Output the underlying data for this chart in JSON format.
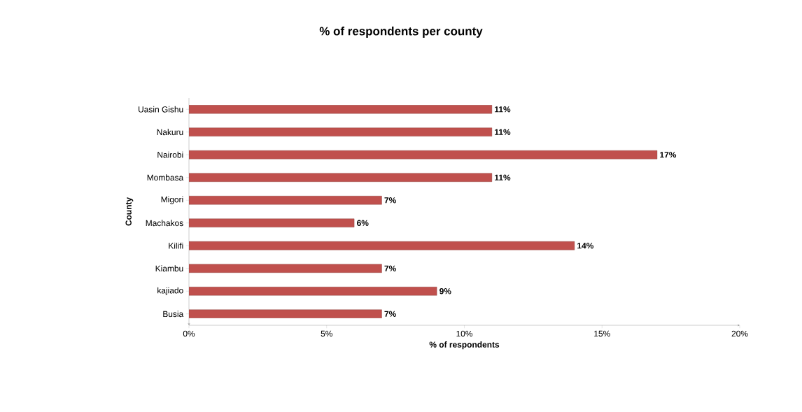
{
  "chart_data": {
    "type": "bar",
    "orientation": "horizontal",
    "title": "% of respondents per county",
    "xlabel": "% of respondents",
    "ylabel": "County",
    "categories": [
      "Uasin Gishu",
      "Nakuru",
      "Nairobi",
      "Mombasa",
      "Migori",
      "Machakos",
      "Kilifi",
      "Kiambu",
      "kajiado",
      "Busia"
    ],
    "values": [
      11,
      11,
      17,
      11,
      7,
      6,
      14,
      7,
      9,
      7
    ],
    "value_labels": [
      "11%",
      "11%",
      "17%",
      "11%",
      "7%",
      "6%",
      "14%",
      "7%",
      "9%",
      "7%"
    ],
    "color": "#c0504d",
    "xlim": [
      0,
      20
    ],
    "xticks": [
      {
        "value": 0,
        "label": "0%"
      },
      {
        "value": 5,
        "label": "5%"
      },
      {
        "value": 10,
        "label": "10%"
      },
      {
        "value": 15,
        "label": "15%"
      },
      {
        "value": 20,
        "label": "20%"
      }
    ],
    "grid": false
  }
}
